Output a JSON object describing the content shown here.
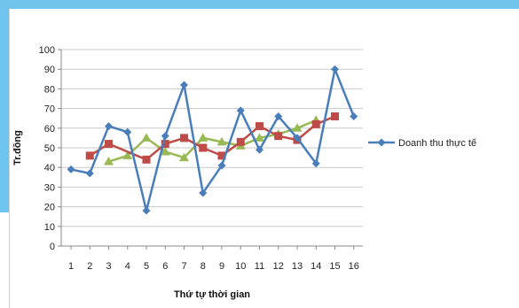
{
  "chart_data": {
    "type": "line",
    "title": "",
    "xlabel": "Thứ tự thời gian",
    "ylabel": "Tr.đồng",
    "x": [
      1,
      2,
      3,
      4,
      5,
      6,
      7,
      8,
      9,
      10,
      11,
      12,
      13,
      14,
      15,
      16
    ],
    "xlim": [
      1,
      16
    ],
    "ylim": [
      0,
      100
    ],
    "y_ticks": [
      0,
      10,
      20,
      30,
      40,
      50,
      60,
      70,
      80,
      90,
      100
    ],
    "grid": "horizontal",
    "legend_position": "right",
    "series": [
      {
        "name": "Doanh thu thực tế",
        "color": "#4a7ebb",
        "marker": "diamond",
        "values": [
          39,
          37,
          61,
          58,
          18,
          56,
          82,
          27,
          41,
          69,
          49,
          66,
          55,
          42,
          90,
          66
        ]
      },
      {
        "name": "",
        "color": "#be4b48",
        "marker": "square",
        "values": [
          null,
          46,
          52,
          null,
          44,
          52,
          55,
          50,
          46,
          53,
          61,
          56,
          54,
          62,
          66,
          null
        ]
      },
      {
        "name": "",
        "color": "#98b954",
        "marker": "triangle",
        "values": [
          null,
          null,
          43,
          46,
          55,
          48,
          45,
          55,
          53,
          51,
          55,
          57,
          60,
          64,
          null,
          null
        ]
      }
    ]
  }
}
